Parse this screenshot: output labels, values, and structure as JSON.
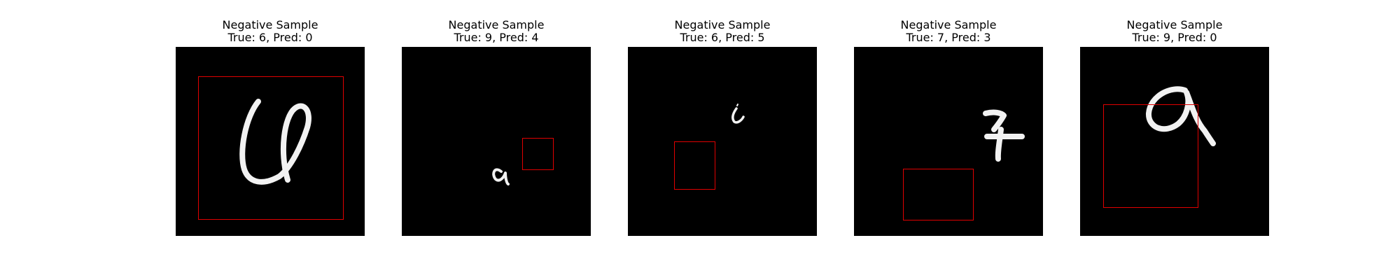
{
  "panels": [
    {
      "title_line1": "Negative Sample",
      "title_line2": "True: 6, Pred: 0",
      "digit": "handwritten-6"
    },
    {
      "title_line1": "Negative Sample",
      "title_line2": "True: 9, Pred: 4",
      "digit": "handwritten-9"
    },
    {
      "title_line1": "Negative Sample",
      "title_line2": "True: 6, Pred: 5",
      "digit": "handwritten-6"
    },
    {
      "title_line1": "Negative Sample",
      "title_line2": "True: 7, Pred: 3",
      "digit": "handwritten-7"
    },
    {
      "title_line1": "Negative Sample",
      "title_line2": "True: 9, Pred: 0",
      "digit": "handwritten-9"
    }
  ],
  "colors": {
    "background": "#000000",
    "box": "#e00000",
    "stroke": "#f2f2f2"
  }
}
